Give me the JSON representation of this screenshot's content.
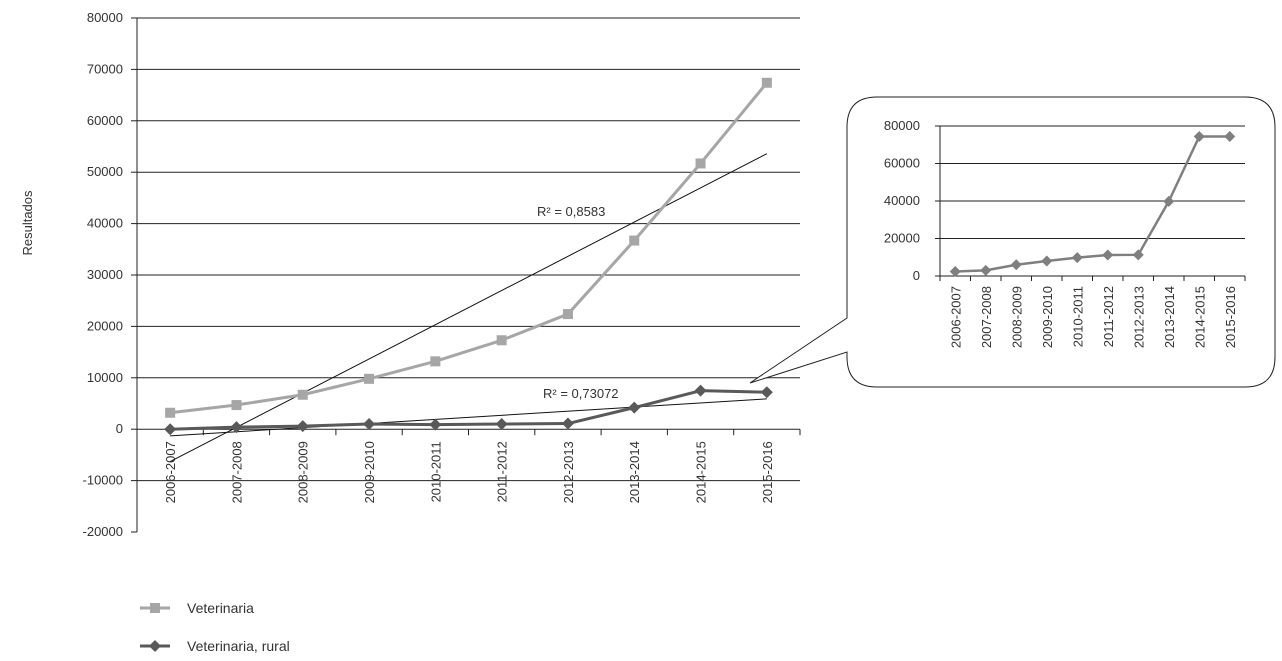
{
  "chart_data": [
    {
      "type": "line",
      "categories": [
        "2006-2007",
        "2007-2008",
        "2008-2009",
        "2009-2010",
        "2010-2011",
        "2011-2012",
        "2012-2013",
        "2013-2014",
        "2014-2015",
        "2015-2016"
      ],
      "ylabel": "Resultados",
      "ylim": [
        -20000,
        80000
      ],
      "yticks": [
        80000,
        70000,
        60000,
        50000,
        40000,
        30000,
        20000,
        10000,
        0,
        -10000,
        -20000
      ],
      "grid": true,
      "legend_position": "bottom-left",
      "series": [
        {
          "name": "Veterinaria",
          "values": [
            3200,
            4700,
            6700,
            9800,
            13200,
            17300,
            22400,
            36700,
            51700,
            67400
          ],
          "color": "#a6a6a6",
          "marker": "square",
          "trendline": {
            "r2_label": "R² = 0,8583",
            "start": -6300,
            "end": 53600
          }
        },
        {
          "name": "Veterinaria, rural",
          "values": [
            0,
            400,
            600,
            1000,
            900,
            1000,
            1100,
            4200,
            7500,
            7200
          ],
          "color": "#595959",
          "marker": "diamond",
          "trendline": {
            "r2_label": "R² = 0,73072",
            "start": -1300,
            "end": 5900
          }
        }
      ]
    },
    {
      "type": "line",
      "categories": [
        "2006-2007",
        "2007-2008",
        "2008-2009",
        "2009-2010",
        "2010-2011",
        "2011-2012",
        "2012-2013",
        "2013-2014",
        "2014-2015",
        "2015-2016"
      ],
      "ylim": [
        0,
        80000
      ],
      "yticks": [
        80000,
        60000,
        40000,
        20000,
        0
      ],
      "grid": true,
      "series": [
        {
          "values": [
            2400,
            3000,
            6000,
            8000,
            9800,
            11200,
            11300,
            39800,
            74400,
            74400
          ],
          "color": "#7f7f7f",
          "marker": "diamond"
        }
      ]
    }
  ]
}
